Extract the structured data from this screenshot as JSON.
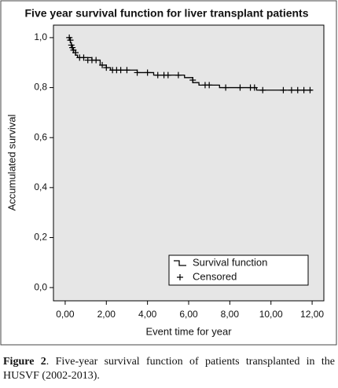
{
  "chart_data": {
    "type": "survival",
    "title": "Five year survival function for liver transplant patients",
    "x_label": "Event time for year",
    "y_label": "Accumulated survival",
    "xlim": [
      -0.57,
      12.57
    ],
    "ylim": [
      -0.053,
      1.05
    ],
    "xticks": [
      {
        "value": 0,
        "label": "0,00"
      },
      {
        "value": 2,
        "label": "2,00"
      },
      {
        "value": 4,
        "label": "4,00"
      },
      {
        "value": 6,
        "label": "6,00"
      },
      {
        "value": 8,
        "label": "8,00"
      },
      {
        "value": 10,
        "label": "10,00"
      },
      {
        "value": 12,
        "label": "12,00"
      }
    ],
    "yticks": [
      {
        "value": 0,
        "label": "0,0"
      },
      {
        "value": 0.2,
        "label": "0,2"
      },
      {
        "value": 0.4,
        "label": "0,4"
      },
      {
        "value": 0.6,
        "label": "0,6"
      },
      {
        "value": 0.8,
        "label": "0,8"
      },
      {
        "value": 1.0,
        "label": "1,0"
      }
    ],
    "background": "#e6e6e6",
    "legend": "lower right",
    "series": [
      {
        "name": "Survival function",
        "color": "#000000",
        "step": true,
        "x": [
          0.1,
          0.2,
          0.25,
          0.3,
          0.35,
          0.4,
          0.5,
          0.6,
          1.3,
          1.7,
          2.0,
          2.2,
          3.5,
          4.3,
          5.8,
          6.2,
          6.5,
          7.5,
          9.3,
          12.0
        ],
        "values": [
          1.0,
          0.99,
          0.98,
          0.97,
          0.96,
          0.95,
          0.93,
          0.92,
          0.91,
          0.89,
          0.88,
          0.87,
          0.86,
          0.85,
          0.84,
          0.82,
          0.81,
          0.8,
          0.79,
          0.79
        ]
      },
      {
        "name": "Censored",
        "color": "#000000",
        "marker": "plus",
        "x": [
          0.2,
          0.25,
          0.3,
          0.35,
          0.4,
          0.5,
          0.7,
          0.9,
          1.1,
          1.3,
          1.5,
          1.8,
          2.0,
          2.3,
          2.5,
          2.7,
          3.0,
          3.5,
          4.0,
          4.5,
          4.8,
          5.0,
          5.5,
          6.2,
          6.8,
          7.0,
          7.8,
          8.5,
          9.0,
          9.2,
          9.6,
          10.6,
          11.0,
          11.3,
          11.6,
          11.9
        ],
        "values": [
          1.0,
          0.99,
          0.97,
          0.96,
          0.95,
          0.94,
          0.92,
          0.92,
          0.91,
          0.91,
          0.91,
          0.89,
          0.88,
          0.87,
          0.87,
          0.87,
          0.87,
          0.86,
          0.86,
          0.85,
          0.85,
          0.85,
          0.85,
          0.83,
          0.81,
          0.81,
          0.8,
          0.8,
          0.8,
          0.8,
          0.79,
          0.79,
          0.79,
          0.79,
          0.79,
          0.79
        ]
      }
    ]
  },
  "caption": {
    "label": "Figure 2",
    "text": ". Five-year survival function of patients transplanted in the HUSVF (2002-2013)."
  }
}
